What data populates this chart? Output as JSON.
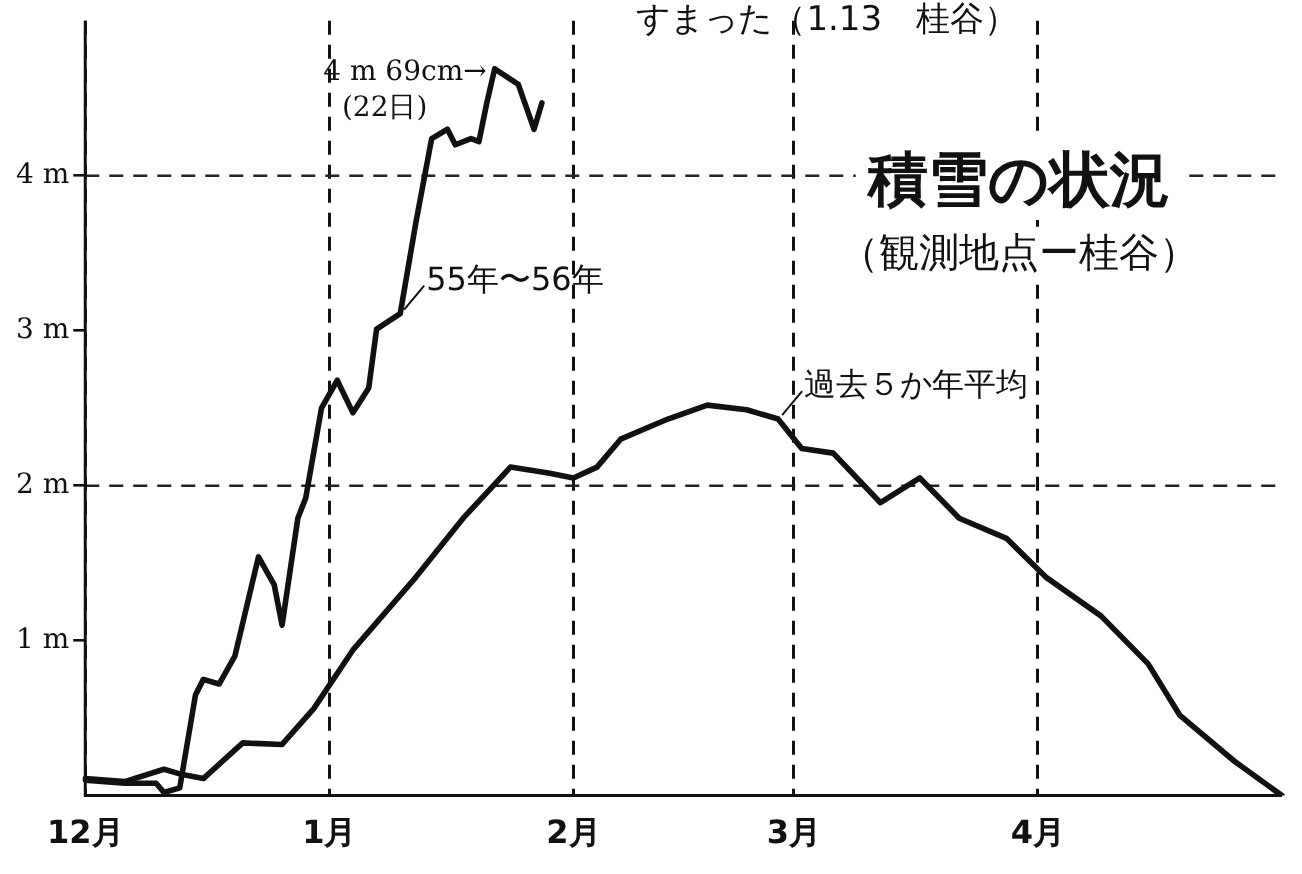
{
  "chart_data": {
    "type": "line",
    "title": "積雪の状況",
    "subtitle": "（観測地点ー桂谷）",
    "annotations": [
      "すまった（1.13　桂谷）",
      "4 m 69cm→\n(22日)"
    ],
    "legend": "top",
    "categories": [
      "12月",
      null,
      null,
      null,
      null,
      null,
      null,
      null,
      null,
      null,
      null,
      null,
      null,
      null,
      null,
      null,
      null,
      null,
      null,
      null,
      null,
      null,
      null,
      null,
      null,
      null,
      null,
      null,
      null,
      null,
      null,
      "1月",
      null,
      null,
      null,
      null,
      null,
      null,
      null,
      null,
      null,
      null,
      null,
      null,
      null,
      null,
      null,
      null,
      null,
      null,
      null,
      null,
      null,
      null,
      null,
      null,
      null,
      null,
      null,
      null,
      null,
      null,
      "2月",
      null,
      null,
      null,
      null,
      null,
      null,
      null,
      null,
      null,
      null,
      null,
      null,
      null,
      null,
      null,
      null,
      null,
      null,
      null,
      null,
      null,
      null,
      null,
      null,
      null,
      null,
      null,
      "3月",
      null,
      null,
      null,
      null,
      null,
      null,
      null,
      null,
      null,
      null,
      null,
      null,
      null,
      null,
      null,
      null,
      null,
      null,
      null,
      null,
      null,
      null,
      null,
      null,
      null,
      null,
      null,
      null,
      null,
      null,
      "4月",
      null,
      null,
      null,
      null,
      null,
      null,
      null,
      null,
      null,
      null,
      null,
      null,
      null,
      null,
      null,
      null,
      null,
      null,
      null,
      null,
      null,
      null,
      null,
      null,
      null,
      null,
      null,
      null,
      null,
      null,
      null
    ],
    "ylim": [
      0,
      5
    ],
    "yticks": [
      {
        "value": 1,
        "label": "1 m"
      },
      {
        "value": 2,
        "label": "2 m"
      },
      {
        "value": 3,
        "label": "3 m"
      },
      {
        "value": 4,
        "label": "4 m"
      }
    ],
    "marker": "none",
    "line_style": "solid",
    "ref_lines": [
      {
        "axis": "y",
        "value": 2,
        "color": "#222222",
        "line_style": "dashed"
      },
      {
        "axis": "y",
        "value": 4,
        "color": "#222222",
        "line_style": "dashed"
      }
    ],
    "grid": "x",
    "series": [
      {
        "name": "55年〜56年",
        "color": "#111111",
        "values": [
          0.1,
          null,
          null,
          null,
          null,
          0.08,
          null,
          null,
          null,
          0.08,
          0.02,
          null,
          0.05,
          null,
          0.65,
          0.75,
          null,
          0.72,
          null,
          0.9,
          null,
          null,
          1.54,
          null,
          1.36,
          1.1,
          null,
          1.79,
          1.92,
          null,
          2.5,
          null,
          2.68,
          null,
          2.47,
          null,
          2.63,
          3.01,
          null,
          null,
          3.11,
          null,
          3.7,
          null,
          4.24,
          null,
          4.3,
          4.2,
          null,
          4.24,
          4.22,
          4.47,
          4.69,
          null,
          null,
          4.59,
          null,
          4.3,
          4.47,
          null,
          null,
          null,
          null,
          null,
          null,
          null,
          null,
          null,
          null,
          null,
          null,
          null,
          null,
          null,
          null,
          null,
          null,
          null,
          null,
          null,
          null,
          null,
          null,
          null,
          null,
          null,
          null,
          null,
          null,
          null,
          null,
          null,
          null,
          null,
          null,
          null,
          null,
          null,
          null,
          null,
          null,
          null,
          null,
          null,
          null,
          null,
          null,
          null,
          null,
          null,
          null,
          null,
          null,
          null,
          null,
          null,
          null,
          null,
          null,
          null,
          null,
          null,
          null,
          null,
          null,
          null,
          null,
          null,
          null,
          null,
          null,
          null,
          null,
          null,
          null,
          null,
          null,
          null,
          null,
          null,
          null,
          null,
          null,
          null,
          null,
          null,
          null,
          null,
          null,
          null,
          null,
          null,
          null
        ]
      },
      {
        "name": "過去５か年平均",
        "color": "#111111",
        "values": [
          0.11,
          null,
          null,
          null,
          null,
          0.09,
          null,
          null,
          null,
          null,
          0.17,
          null,
          0.14,
          null,
          null,
          0.11,
          null,
          null,
          null,
          null,
          0.34,
          null,
          null,
          null,
          null,
          0.33,
          null,
          null,
          null,
          0.56,
          null,
          null,
          null,
          null,
          0.94,
          null,
          null,
          null,
          null,
          null,
          null,
          null,
          1.41,
          null,
          null,
          null,
          null,
          null,
          1.79,
          null,
          null,
          null,
          null,
          null,
          2.12,
          null,
          null,
          null,
          null,
          2.08,
          null,
          null,
          2.05,
          null,
          null,
          2.12,
          null,
          null,
          2.3,
          null,
          null,
          null,
          null,
          null,
          2.43,
          null,
          null,
          null,
          null,
          2.52,
          null,
          null,
          null,
          null,
          2.49,
          null,
          null,
          null,
          2.43,
          null,
          null,
          2.24,
          null,
          null,
          null,
          2.21,
          null,
          null,
          null,
          null,
          null,
          1.89,
          null,
          null,
          null,
          null,
          2.05,
          null,
          null,
          null,
          null,
          1.79,
          null,
          null,
          null,
          null,
          null,
          1.66,
          null,
          null,
          null,
          null,
          1.41,
          null,
          null,
          null,
          null,
          null,
          null,
          1.16,
          null,
          null,
          null,
          null,
          null,
          0.85,
          null,
          null,
          null,
          0.52,
          null,
          null,
          null,
          null,
          null,
          null,
          0.22,
          null,
          null,
          null,
          null,
          null,
          0
        ]
      }
    ]
  }
}
